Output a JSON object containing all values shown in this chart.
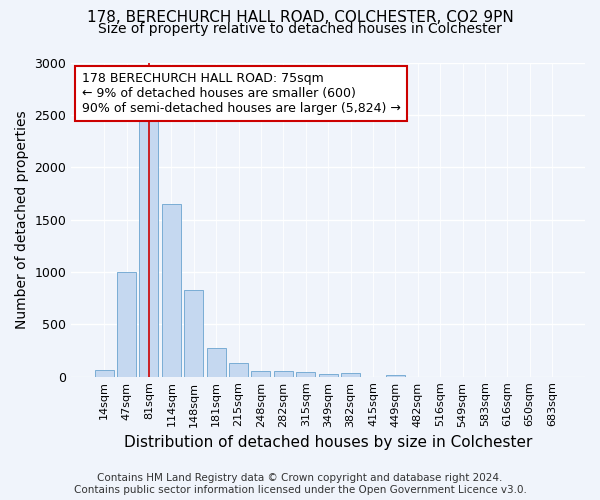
{
  "title_line1": "178, BERECHURCH HALL ROAD, COLCHESTER, CO2 9PN",
  "title_line2": "Size of property relative to detached houses in Colchester",
  "xlabel": "Distribution of detached houses by size in Colchester",
  "ylabel": "Number of detached properties",
  "categories": [
    "14sqm",
    "47sqm",
    "81sqm",
    "114sqm",
    "148sqm",
    "181sqm",
    "215sqm",
    "248sqm",
    "282sqm",
    "315sqm",
    "349sqm",
    "382sqm",
    "415sqm",
    "449sqm",
    "482sqm",
    "516sqm",
    "549sqm",
    "583sqm",
    "616sqm",
    "650sqm",
    "683sqm"
  ],
  "values": [
    60,
    1000,
    2460,
    1650,
    830,
    270,
    130,
    55,
    55,
    40,
    25,
    35,
    0,
    20,
    0,
    0,
    0,
    0,
    0,
    0,
    0
  ],
  "bar_color": "#c5d8f0",
  "bar_edge_color": "#7aadd4",
  "vline_x": 2,
  "vline_color": "#cc0000",
  "annotation_text": "178 BERECHURCH HALL ROAD: 75sqm\n← 9% of detached houses are smaller (600)\n90% of semi-detached houses are larger (5,824) →",
  "annotation_box_facecolor": "#ffffff",
  "annotation_box_edgecolor": "#cc0000",
  "ylim": [
    0,
    3000
  ],
  "yticks": [
    0,
    500,
    1000,
    1500,
    2000,
    2500,
    3000
  ],
  "background_color": "#f0f4fb",
  "plot_bg_color": "#f0f4fb",
  "footer_line1": "Contains HM Land Registry data © Crown copyright and database right 2024.",
  "footer_line2": "Contains public sector information licensed under the Open Government Licence v3.0.",
  "title_fontsize": 11,
  "subtitle_fontsize": 10,
  "axis_label_fontsize": 10,
  "tick_fontsize": 8,
  "annotation_fontsize": 9,
  "footer_fontsize": 7.5
}
